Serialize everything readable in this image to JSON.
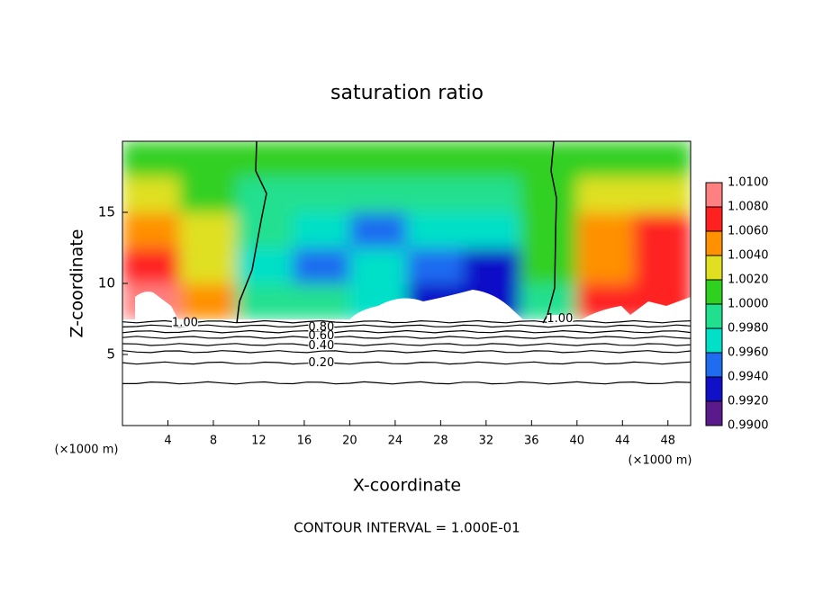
{
  "chart_data": {
    "type": "contour",
    "title": "saturation ratio",
    "x_label": "X-coordinate",
    "y_label": "Z-coordinate",
    "x_unit_label": "(×1000 m)",
    "y_unit_label": "(×1000 m)",
    "footer": "CONTOUR INTERVAL = 1.000E-01",
    "xlim": [
      0,
      50
    ],
    "ylim": [
      0,
      20
    ],
    "xticks": [
      4,
      8,
      12,
      16,
      20,
      24,
      28,
      32,
      36,
      40,
      44,
      48
    ],
    "yticks": [
      5,
      10,
      15
    ],
    "x": [
      2.5,
      7.5,
      12.5,
      17.5,
      22.5,
      27.5,
      32.5,
      37.5,
      42.5,
      47.5
    ],
    "z": [
      8.75,
      11.25,
      13.75,
      16.25,
      18.75
    ],
    "values": [
      [
        1.008,
        1.005,
        0.999,
        0.998,
        0.997,
        0.993,
        0.992,
        0.999,
        1.006,
        1.007
      ],
      [
        1.007,
        1.003,
        0.997,
        0.995,
        0.996,
        0.994,
        0.993,
        1.0,
        1.005,
        1.007
      ],
      [
        1.004,
        1.002,
        0.998,
        0.996,
        0.995,
        0.996,
        0.996,
        1.0,
        1.004,
        1.006
      ],
      [
        1.002,
        1.001,
        0.999,
        0.998,
        0.998,
        0.998,
        0.998,
        1.0,
        1.003,
        1.003
      ],
      [
        1.001,
        1.0,
        1.0,
        1.0,
        1.0,
        1.0,
        1.0,
        1.0,
        1.001,
        1.001
      ]
    ],
    "colorbar_lim": [
      0.99,
      1.01
    ],
    "colorbar_ticks": [
      {
        "value": 0.99,
        "label": "0.9900"
      },
      {
        "value": 0.992,
        "label": "0.9920"
      },
      {
        "value": 0.994,
        "label": "0.9940"
      },
      {
        "value": 0.996,
        "label": "0.9960"
      },
      {
        "value": 0.998,
        "label": "0.9980"
      },
      {
        "value": 1.0,
        "label": "1.0000"
      },
      {
        "value": 1.002,
        "label": "1.0020"
      },
      {
        "value": 1.004,
        "label": "1.0040"
      },
      {
        "value": 1.006,
        "label": "1.0060"
      },
      {
        "value": 1.008,
        "label": "1.0080"
      },
      {
        "value": 1.01,
        "label": "1.0100"
      }
    ],
    "colors": [
      "#5a1a8c",
      "#1010c8",
      "#1e6cf0",
      "#00e0c8",
      "#20e090",
      "#30d020",
      "#e0e020",
      "#ff9000",
      "#ff2020",
      "#ff8080"
    ],
    "contour_lines": [
      7.3,
      7.0,
      6.6,
      6.2,
      5.7,
      5.2,
      4.4,
      3.0
    ],
    "contour_labels": [
      {
        "text": "1.00",
        "x": 5.5,
        "z": 7.2
      },
      {
        "text": "0.80",
        "x": 17.5,
        "z": 6.9
      },
      {
        "text": "0.60",
        "x": 17.5,
        "z": 6.3
      },
      {
        "text": "0.40",
        "x": 17.5,
        "z": 5.6
      },
      {
        "text": "0.20",
        "x": 17.5,
        "z": 4.4
      },
      {
        "text": "1.00",
        "x": 38.5,
        "z": 7.5
      }
    ]
  }
}
